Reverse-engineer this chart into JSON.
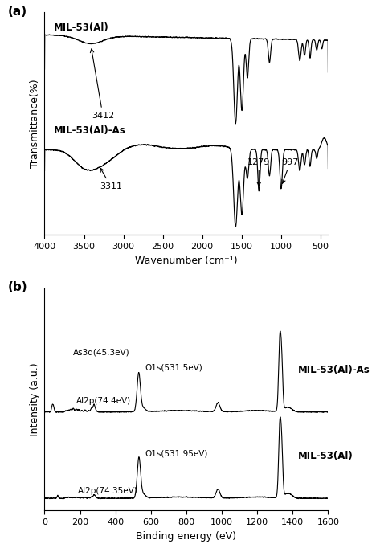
{
  "fig_width": 4.68,
  "fig_height": 6.82,
  "dpi": 100,
  "background": "#ffffff",
  "ftir": {
    "panel_label": "(a)",
    "xlabel": "Wavenumber (cm⁻¹)",
    "ylabel": "Transmittance(%)",
    "xlim_left": 4000,
    "xlim_right": 400,
    "xticks": [
      4000,
      3500,
      3000,
      2500,
      2000,
      1500,
      1000,
      500
    ],
    "curve1_label": "MIL-53(Al)",
    "curve2_label": "MIL-53(Al)-As",
    "annot_3412": "3412",
    "annot_3311": "3311",
    "annot_1279": "1279",
    "annot_997": "997"
  },
  "xps": {
    "panel_label": "(b)",
    "xlabel": "Binding energy (eV)",
    "ylabel": "Intensity (a.u.)",
    "xlim_left": 0,
    "xlim_right": 1600,
    "xticks": [
      0,
      200,
      400,
      600,
      800,
      1000,
      1200,
      1400,
      1600
    ],
    "curve1_label": "MIL-53(Al)-As",
    "curve2_label": "MIL-53(Al)",
    "annot_as3d": "As3d(45.3eV)",
    "annot_al2p1": "Al2p(74.4eV)",
    "annot_al2p2": "Al2p(74.35eV)",
    "annot_o1s1": "O1s(531.5eV)",
    "annot_o1s2": "O1s(531.95eV)"
  }
}
